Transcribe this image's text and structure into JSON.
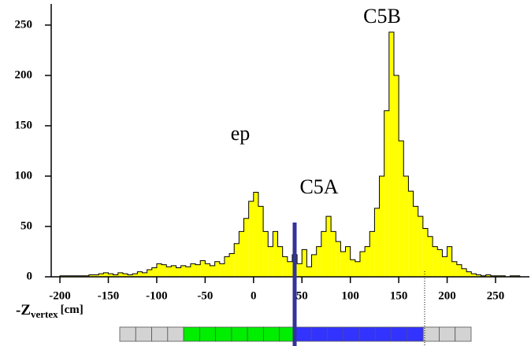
{
  "chart_data": {
    "type": "histogram",
    "xlabel": {
      "main": "-Z",
      "sub": "vertex",
      "unit": "[cm]"
    },
    "annotations": [
      "ep",
      "C5A",
      "C5B"
    ],
    "color": "#ffff00",
    "bins": [
      -200,
      -195,
      -190,
      -185,
      -180,
      -175,
      -170,
      -165,
      -160,
      -155,
      -150,
      -145,
      -140,
      -135,
      -130,
      -125,
      -120,
      -115,
      -110,
      -105,
      -100,
      -95,
      -90,
      -85,
      -80,
      -75,
      -70,
      -65,
      -60,
      -55,
      -50,
      -45,
      -40,
      -35,
      -30,
      -25,
      -20,
      -15,
      -10,
      -5,
      0,
      5,
      10,
      15,
      20,
      25,
      30,
      35,
      40,
      45,
      50,
      55,
      60,
      65,
      70,
      75,
      80,
      85,
      90,
      95,
      100,
      105,
      110,
      115,
      120,
      125,
      130,
      135,
      140,
      145,
      150,
      155,
      160,
      165,
      170,
      175,
      180,
      185,
      190,
      195,
      200,
      205,
      210,
      215,
      220,
      225,
      230,
      235,
      240,
      245,
      250,
      255,
      260,
      265,
      270,
      275,
      280
    ],
    "values": [
      1,
      1,
      1,
      1,
      1,
      1,
      2,
      2,
      3,
      4,
      3,
      2,
      4,
      3,
      2,
      3,
      5,
      4,
      7,
      9,
      13,
      12,
      10,
      11,
      9,
      11,
      10,
      13,
      12,
      16,
      13,
      11,
      15,
      13,
      20,
      23,
      33,
      45,
      58,
      75,
      84,
      70,
      45,
      30,
      45,
      30,
      20,
      15,
      22,
      13,
      27,
      10,
      22,
      30,
      45,
      60,
      45,
      35,
      25,
      30,
      17,
      15,
      25,
      30,
      45,
      68,
      100,
      165,
      243,
      200,
      135,
      100,
      85,
      70,
      60,
      48,
      40,
      30,
      27,
      20,
      30,
      15,
      12,
      8,
      5,
      3,
      2,
      1,
      2,
      1,
      1,
      1,
      0,
      1,
      1,
      0
    ],
    "xlim": [
      -209,
      285
    ],
    "ylim": [
      0,
      271
    ],
    "xticks": [
      -200,
      -150,
      -100,
      -50,
      0,
      50,
      100,
      150,
      200,
      250
    ],
    "yticks": [
      0,
      50,
      100,
      150,
      200,
      250
    ]
  }
}
